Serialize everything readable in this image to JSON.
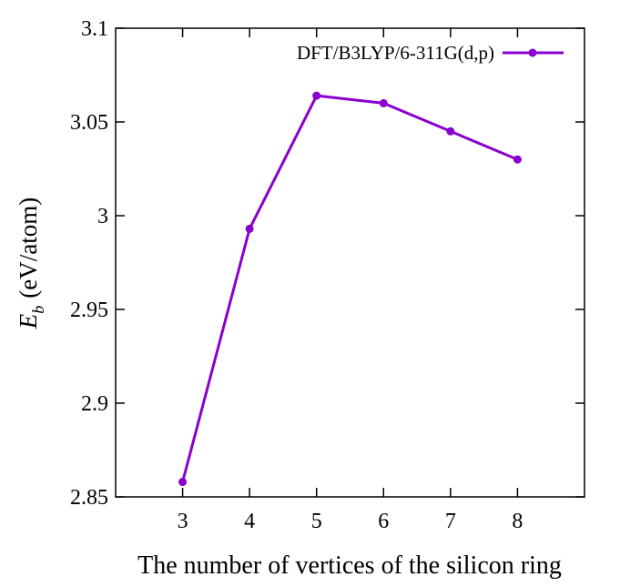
{
  "chart_data": {
    "type": "line",
    "title": "",
    "xlabel": "The number of vertices of the silicon ring",
    "ylabel": {
      "symbol": "E",
      "subscript": "b",
      "unit": "(eV/atom)"
    },
    "x": [
      3,
      4,
      5,
      6,
      7,
      8
    ],
    "xlim": [
      2,
      9
    ],
    "xticks": [
      3,
      4,
      5,
      6,
      7,
      8
    ],
    "xtick_labels": [
      "3",
      "4",
      "5",
      "6",
      "7",
      "8"
    ],
    "ylim": [
      2.85,
      3.1
    ],
    "yticks": [
      2.85,
      2.9,
      2.95,
      3.0,
      3.05,
      3.1
    ],
    "ytick_labels": [
      "2.85",
      "2.9",
      "2.95",
      "3",
      "3.05",
      "3.1"
    ],
    "series": [
      {
        "name": "DFT/B3LYP/6-311G(d,p)",
        "values": [
          2.858,
          2.993,
          3.064,
          3.06,
          3.045,
          3.03
        ],
        "color": "#8b00cc",
        "marker": "circle"
      }
    ],
    "grid": false,
    "legend": "top-right"
  }
}
